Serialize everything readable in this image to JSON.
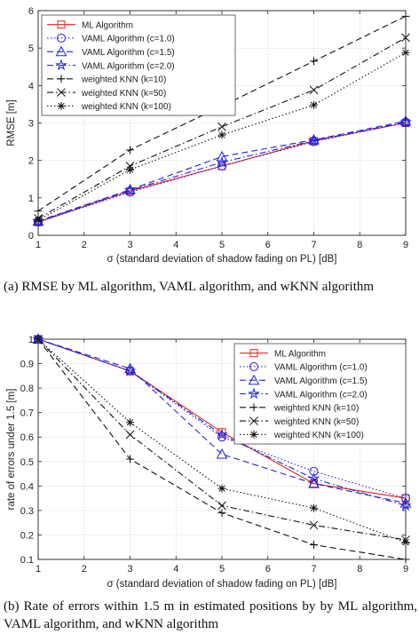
{
  "captions": {
    "a": "(a)  RMSE by ML algorithm, VAML algorithm, and wKNN algorithm",
    "b": "(b)  Rate of errors within 1.5 m in estimated positions by by ML algorithm, VAML algorithm, and wKNN algorithm"
  },
  "chart_data": [
    {
      "type": "line",
      "id": "a",
      "title": "",
      "xlabel": "σ (standard deviation of shadow fading on PL) [dB]",
      "ylabel": "RMSE [m]",
      "xlim": [
        1,
        9
      ],
      "ylim": [
        0,
        6
      ],
      "xticks": [
        1,
        2,
        3,
        4,
        5,
        6,
        7,
        8,
        9
      ],
      "yticks": [
        0,
        1,
        2,
        3,
        4,
        5,
        6
      ],
      "grid": true,
      "legend_position": "top-left",
      "x": [
        1,
        3,
        5,
        7,
        9
      ],
      "series": [
        {
          "name": "ML Algorithm",
          "values": [
            0.35,
            1.18,
            1.85,
            2.52,
            3.0
          ],
          "color": "#e8241c",
          "dash": "solid",
          "marker": "square"
        },
        {
          "name": "VAML Algorithm (c=1.0)",
          "values": [
            0.36,
            1.15,
            1.85,
            2.5,
            3.02
          ],
          "color": "#2222e0",
          "dash": "dot",
          "marker": "circle"
        },
        {
          "name": "VAML Algorithm (c=1.5)",
          "values": [
            0.38,
            1.22,
            2.1,
            2.55,
            3.05
          ],
          "color": "#2222e0",
          "dash": "dash",
          "marker": "triangle"
        },
        {
          "name": "VAML Algorithm (c=2.0)",
          "values": [
            0.37,
            1.2,
            1.95,
            2.53,
            3.02
          ],
          "color": "#2222e0",
          "dash": "dashdot",
          "marker": "star"
        },
        {
          "name": "weighted KNN (k=10)",
          "values": [
            0.65,
            2.28,
            3.45,
            4.65,
            5.85
          ],
          "color": "#111111",
          "dash": "dash",
          "marker": "plus"
        },
        {
          "name": "weighted KNN (k=50)",
          "values": [
            0.45,
            1.85,
            2.9,
            3.88,
            5.28
          ],
          "color": "#111111",
          "dash": "dashdot",
          "marker": "x"
        },
        {
          "name": "weighted KNN (k=100)",
          "values": [
            0.4,
            1.75,
            2.68,
            3.48,
            4.88
          ],
          "color": "#111111",
          "dash": "dot",
          "marker": "asterisk"
        }
      ]
    },
    {
      "type": "line",
      "id": "b",
      "title": "",
      "xlabel": "σ (standard deviation of shadow fading on PL) [dB]",
      "ylabel": "rate of errors under 1.5 [m]",
      "xlim": [
        1,
        9
      ],
      "ylim": [
        0.1,
        1
      ],
      "xticks": [
        1,
        2,
        3,
        4,
        5,
        6,
        7,
        8,
        9
      ],
      "yticks": [
        0.1,
        0.2,
        0.3,
        0.4,
        0.5,
        0.6,
        0.7,
        0.8,
        0.9,
        1
      ],
      "grid": true,
      "legend_position": "top-right",
      "x": [
        1,
        3,
        5,
        7,
        9
      ],
      "series": [
        {
          "name": "ML Algorithm",
          "values": [
            1.0,
            0.87,
            0.62,
            0.41,
            0.35
          ],
          "color": "#e8241c",
          "dash": "solid",
          "marker": "square"
        },
        {
          "name": "VAML Algorithm (c=1.0)",
          "values": [
            1.0,
            0.87,
            0.6,
            0.46,
            0.35
          ],
          "color": "#2222e0",
          "dash": "dot",
          "marker": "circle"
        },
        {
          "name": "VAML Algorithm (c=1.5)",
          "values": [
            1.0,
            0.88,
            0.53,
            0.41,
            0.33
          ],
          "color": "#2222e0",
          "dash": "dash",
          "marker": "triangle"
        },
        {
          "name": "VAML Algorithm (c=2.0)",
          "values": [
            1.0,
            0.87,
            0.61,
            0.43,
            0.32
          ],
          "color": "#2222e0",
          "dash": "dashdot",
          "marker": "star"
        },
        {
          "name": "weighted KNN (k=10)",
          "values": [
            1.0,
            0.51,
            0.29,
            0.16,
            0.1
          ],
          "color": "#111111",
          "dash": "dash",
          "marker": "plus"
        },
        {
          "name": "weighted KNN (k=50)",
          "values": [
            1.0,
            0.61,
            0.32,
            0.24,
            0.18
          ],
          "color": "#111111",
          "dash": "dashdot",
          "marker": "x"
        },
        {
          "name": "weighted KNN (k=100)",
          "values": [
            1.0,
            0.66,
            0.39,
            0.31,
            0.17
          ],
          "color": "#111111",
          "dash": "dot",
          "marker": "asterisk"
        }
      ]
    }
  ]
}
